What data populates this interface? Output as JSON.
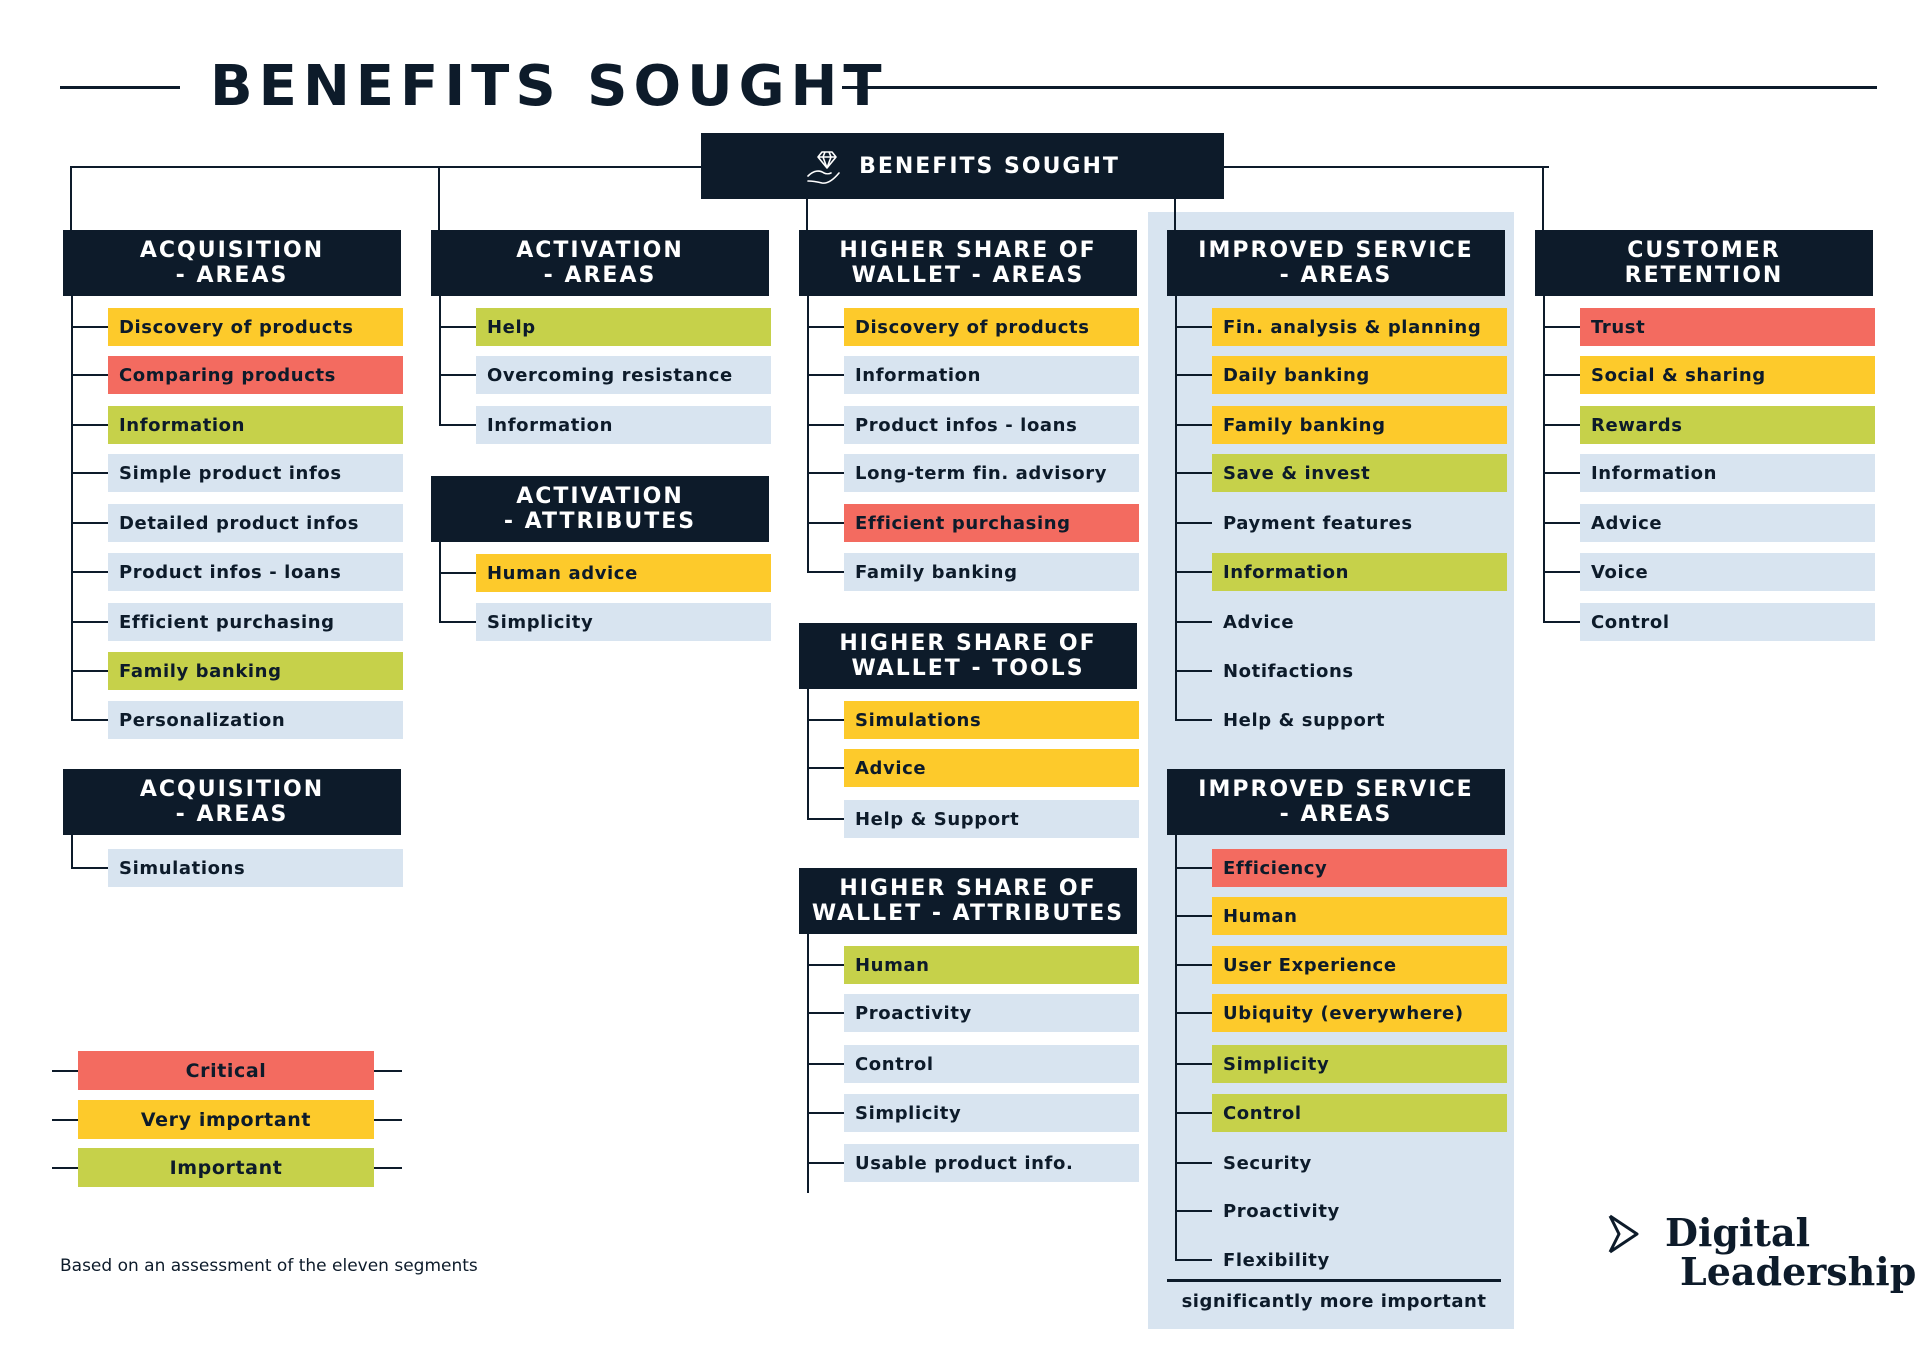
{
  "title": "BENEFITS SOUGHT",
  "root_label": "BENEFITS SOUGHT",
  "root_icon": "diamond-hand-icon",
  "colors": {
    "critical": "#f36b60",
    "very_important": "#fdca2b",
    "important": "#c6d14a",
    "neutral": "#d8e4f0",
    "navy": "#0d1b2a"
  },
  "groups": [
    {
      "id": "acquisition-areas",
      "title_lines": [
        "ACQUISITION",
        "- AREAS"
      ],
      "items": [
        {
          "label": "Discovery of products",
          "level": "very_important"
        },
        {
          "label": "Comparing products",
          "level": "critical"
        },
        {
          "label": "Information",
          "level": "important"
        },
        {
          "label": "Simple product infos",
          "level": "none"
        },
        {
          "label": "Detailed product infos",
          "level": "none"
        },
        {
          "label": "Product infos - loans",
          "level": "none"
        },
        {
          "label": "Efficient purchasing",
          "level": "none"
        },
        {
          "label": "Family banking",
          "level": "important"
        },
        {
          "label": "Personalization",
          "level": "none"
        }
      ]
    },
    {
      "id": "acquisition-areas-2",
      "title_lines": [
        "ACQUISITION",
        "- AREAS"
      ],
      "items": [
        {
          "label": "Simulations",
          "level": "none"
        }
      ]
    },
    {
      "id": "activation-areas",
      "title_lines": [
        "ACTIVATION",
        "- AREAS"
      ],
      "items": [
        {
          "label": "Help",
          "level": "important"
        },
        {
          "label": "Overcoming resistance",
          "level": "none"
        },
        {
          "label": "Information",
          "level": "none"
        }
      ]
    },
    {
      "id": "activation-attributes",
      "title_lines": [
        "ACTIVATION",
        "- ATTRIBUTES"
      ],
      "items": [
        {
          "label": "Human advice",
          "level": "very_important"
        },
        {
          "label": "Simplicity",
          "level": "none"
        }
      ]
    },
    {
      "id": "wallet-areas",
      "title_lines": [
        "HIGHER SHARE OF",
        "WALLET - AREAS"
      ],
      "items": [
        {
          "label": "Discovery of products",
          "level": "very_important"
        },
        {
          "label": "Information",
          "level": "none"
        },
        {
          "label": "Product infos - loans",
          "level": "none"
        },
        {
          "label": "Long-term fin. advisory",
          "level": "none"
        },
        {
          "label": "Efficient purchasing",
          "level": "critical"
        },
        {
          "label": "Family banking",
          "level": "none"
        }
      ]
    },
    {
      "id": "wallet-tools",
      "title_lines": [
        "HIGHER SHARE OF",
        "WALLET - TOOLS"
      ],
      "items": [
        {
          "label": "Simulations",
          "level": "very_important"
        },
        {
          "label": "Advice",
          "level": "very_important"
        },
        {
          "label": "Help & Support",
          "level": "none"
        }
      ]
    },
    {
      "id": "wallet-attributes",
      "title_lines": [
        "HIGHER SHARE OF",
        "WALLET - ATTRIBUTES"
      ],
      "items": [
        {
          "label": "Human",
          "level": "important"
        },
        {
          "label": "Proactivity",
          "level": "none"
        },
        {
          "label": "Control",
          "level": "none"
        },
        {
          "label": "Simplicity",
          "level": "none"
        },
        {
          "label": "Usable product info.",
          "level": "none"
        }
      ]
    },
    {
      "id": "service-areas",
      "title_lines": [
        "IMPROVED SERVICE",
        "- AREAS"
      ],
      "items": [
        {
          "label": "Fin. analysis & planning",
          "level": "very_important"
        },
        {
          "label": "Daily banking",
          "level": "very_important"
        },
        {
          "label": "Family banking",
          "level": "very_important"
        },
        {
          "label": "Save & invest",
          "level": "important"
        },
        {
          "label": "Payment features",
          "level": "none"
        },
        {
          "label": "Information",
          "level": "important"
        },
        {
          "label": "Advice",
          "level": "none"
        },
        {
          "label": "Notifactions",
          "level": "none"
        },
        {
          "label": "Help & support",
          "level": "none"
        }
      ]
    },
    {
      "id": "service-areas-2",
      "title_lines": [
        "IMPROVED SERVICE",
        "- AREAS"
      ],
      "items": [
        {
          "label": "Efficiency",
          "level": "critical"
        },
        {
          "label": "Human",
          "level": "very_important"
        },
        {
          "label": "User Experience",
          "level": "very_important"
        },
        {
          "label": "Ubiquity (everywhere)",
          "level": "very_important"
        },
        {
          "label": "Simplicity",
          "level": "important"
        },
        {
          "label": "Control",
          "level": "important"
        },
        {
          "label": "Security",
          "level": "none"
        },
        {
          "label": "Proactivity",
          "level": "none"
        },
        {
          "label": "Flexibility",
          "level": "none"
        }
      ]
    },
    {
      "id": "customer-retention",
      "title_lines": [
        "CUSTOMER",
        "RETENTION"
      ],
      "items": [
        {
          "label": "Trust",
          "level": "critical"
        },
        {
          "label": "Social & sharing",
          "level": "very_important"
        },
        {
          "label": "Rewards",
          "level": "important"
        },
        {
          "label": "Information",
          "level": "none"
        },
        {
          "label": "Advice",
          "level": "none"
        },
        {
          "label": "Voice",
          "level": "none"
        },
        {
          "label": "Control",
          "level": "none"
        }
      ]
    }
  ],
  "legend": [
    {
      "label": "Critical",
      "level": "critical"
    },
    {
      "label": "Very important",
      "level": "very_important"
    },
    {
      "label": "Important",
      "level": "important"
    }
  ],
  "significance_label": "significantly more important",
  "footnote": "Based on an assessment of the eleven segments",
  "logo": {
    "line1": "Digital",
    "line2": "Leadership",
    "icon": "play-chevron-icon"
  }
}
